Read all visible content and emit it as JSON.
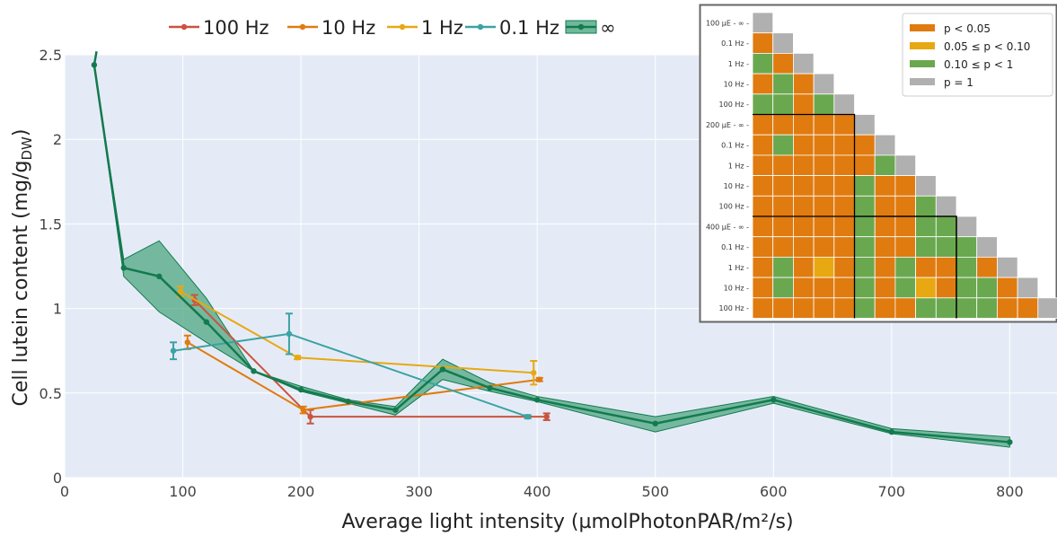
{
  "chart_data": [
    {
      "type": "line",
      "xlabel": "Average light intensity (µmolPhotonPAR/m²/s)",
      "ylabel_main": "Cell lutein content (mg/g",
      "ylabel_sub": "DW",
      "ylabel_close": ")",
      "xlim": [
        0,
        840
      ],
      "ylim": [
        0,
        2.5
      ],
      "xticks": [
        0,
        100,
        200,
        300,
        400,
        500,
        600,
        700,
        800
      ],
      "yticks": [
        0,
        0.5,
        1,
        1.5,
        2,
        2.5
      ],
      "xtick_labels": [
        "0",
        "100",
        "200",
        "300",
        "400",
        "500",
        "600",
        "700",
        "800"
      ],
      "ytick_labels": [
        "0",
        "0.5",
        "1",
        "1.5",
        "2",
        "2.5"
      ],
      "grid": true,
      "legend_position": "top",
      "series": [
        {
          "name": "100 Hz",
          "color": "#c8553d",
          "x": [
            110,
            208,
            408
          ],
          "y": [
            1.05,
            0.36,
            0.36
          ],
          "err": [
            0.03,
            0.04,
            0.02
          ]
        },
        {
          "name": "10 Hz",
          "color": "#e07b10",
          "x": [
            104,
            202,
            402
          ],
          "y": [
            0.8,
            0.4,
            0.58
          ],
          "err": [
            0.04,
            0.02,
            0.01
          ]
        },
        {
          "name": "1 Hz",
          "color": "#e8a812",
          "x": [
            98,
            197,
            397
          ],
          "y": [
            1.1,
            0.71,
            0.62
          ],
          "err": [
            0.03,
            0.01,
            0.07
          ]
        },
        {
          "name": "0.1 Hz",
          "color": "#3aa3a3",
          "x": [
            92,
            190,
            392
          ],
          "y": [
            0.75,
            0.85,
            0.36
          ],
          "err": [
            0.05,
            0.12,
            0.01
          ]
        },
        {
          "name": "∞",
          "color": "#137a4f",
          "fill": "#4ea882",
          "x": [
            25,
            50,
            80,
            120,
            160,
            200,
            240,
            280,
            320,
            360,
            400,
            500,
            600,
            700,
            800
          ],
          "y": [
            2.44,
            1.24,
            1.19,
            0.92,
            0.63,
            0.52,
            0.45,
            0.4,
            0.64,
            0.53,
            0.46,
            0.32,
            0.46,
            0.27,
            0.21
          ],
          "lo": [
            2.44,
            1.19,
            0.98,
            0.8,
            0.63,
            0.51,
            0.44,
            0.37,
            0.58,
            0.51,
            0.45,
            0.27,
            0.44,
            0.26,
            0.18
          ],
          "hi": [
            2.44,
            1.29,
            1.4,
            1.06,
            0.63,
            0.54,
            0.46,
            0.42,
            0.7,
            0.56,
            0.48,
            0.36,
            0.48,
            0.29,
            0.24
          ]
        }
      ]
    },
    {
      "type": "heatmap",
      "row_labels": [
        "100 µE - ∞",
        "0.1 Hz",
        "1 Hz",
        "10 Hz",
        "100 Hz",
        "200 µE - ∞",
        "0.1 Hz",
        "1 Hz",
        "10 Hz",
        "100 Hz",
        "400 µE - ∞",
        "0.1 Hz",
        "1 Hz",
        "10 Hz",
        "100 Hz"
      ],
      "categories": [
        {
          "label": "p < 0.05",
          "color": "#e07b10"
        },
        {
          "label": "0.05 ≤ p < 0.10",
          "color": "#e8a812"
        },
        {
          "label": "0.10 ≤ p < 1",
          "color": "#6aa84f"
        },
        {
          "label": "p = 1",
          "color": "#b0b0b0"
        }
      ],
      "matrix": [
        [
          3
        ],
        [
          0,
          3
        ],
        [
          2,
          0,
          3
        ],
        [
          0,
          2,
          0,
          3
        ],
        [
          2,
          2,
          0,
          2,
          3
        ],
        [
          0,
          0,
          0,
          0,
          0,
          3
        ],
        [
          0,
          2,
          0,
          0,
          0,
          0,
          3
        ],
        [
          0,
          0,
          0,
          0,
          0,
          0,
          2,
          3
        ],
        [
          0,
          0,
          0,
          0,
          0,
          2,
          0,
          0,
          3
        ],
        [
          0,
          0,
          0,
          0,
          0,
          2,
          0,
          0,
          2,
          3
        ],
        [
          0,
          0,
          0,
          0,
          0,
          2,
          0,
          0,
          2,
          2,
          3
        ],
        [
          0,
          0,
          0,
          0,
          0,
          2,
          0,
          0,
          2,
          2,
          2,
          3
        ],
        [
          0,
          2,
          0,
          1,
          0,
          2,
          0,
          2,
          0,
          0,
          2,
          0,
          3
        ],
        [
          0,
          2,
          0,
          0,
          0,
          2,
          0,
          2,
          1,
          0,
          2,
          2,
          0,
          3
        ],
        [
          0,
          0,
          0,
          0,
          0,
          2,
          0,
          0,
          2,
          2,
          2,
          2,
          0,
          0,
          3
        ]
      ]
    }
  ]
}
